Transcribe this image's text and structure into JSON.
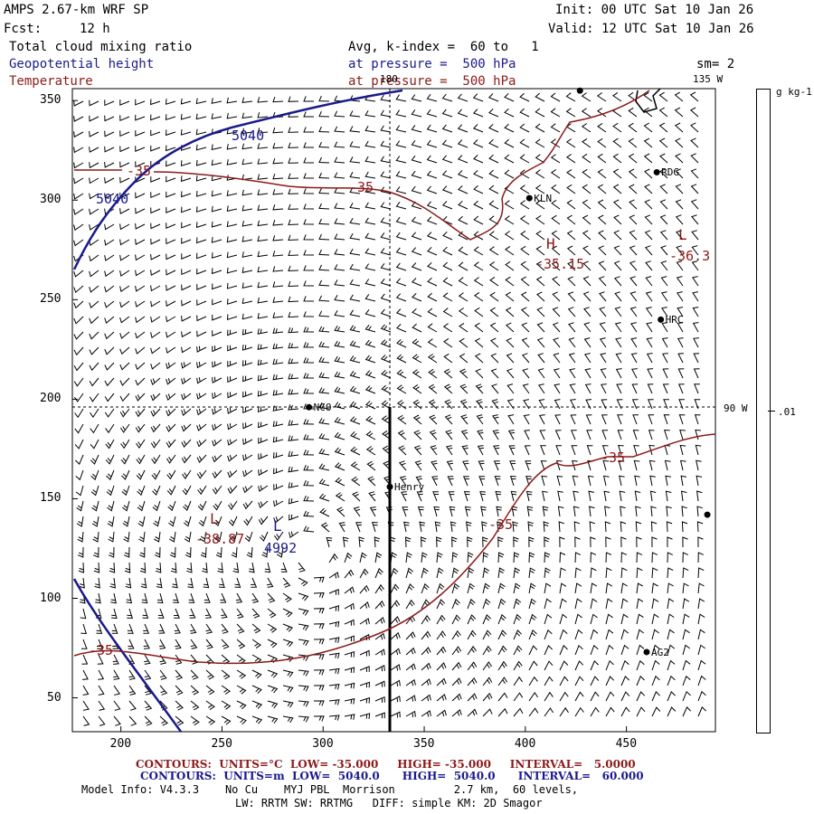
{
  "header": {
    "model": "AMPS 2.67-km WRF SP",
    "fcst_label": "Fcst:",
    "fcst_value": "12 h",
    "init": "Init: 00 UTC Sat 10 Jan 26",
    "valid": "Valid: 12 UTC Sat 10 Jan 26",
    "field1": "Total cloud mixing ratio",
    "field2": "Geopotential height",
    "field3": "Temperature",
    "avg_line": "Avg, k-index =  60 to   1",
    "pressure_line1": "at pressure =  500 hPa",
    "pressure_line2": "at pressure =  500 hPa",
    "smoothing": "sm= 2"
  },
  "axes": {
    "x_ticks": [
      "200",
      "250",
      "300",
      "350",
      "400",
      "450"
    ],
    "y_ticks": [
      "350",
      "300",
      "250",
      "200",
      "150",
      "100",
      "50"
    ],
    "lon_labels": {
      "top": "180",
      "top_right": "135 W",
      "right": "90 W"
    }
  },
  "colorbar": {
    "unit": "g kg-1",
    "value": ".01"
  },
  "stations": [
    {
      "name": "",
      "x": 427,
      "y": 355
    },
    {
      "name": "RDG",
      "x": 465,
      "y": 314
    },
    {
      "name": "KLN",
      "x": 402,
      "y": 301
    },
    {
      "name": "HRC",
      "x": 467,
      "y": 240
    },
    {
      "name": "NCO",
      "x": 293,
      "y": 196
    },
    {
      "name": "Henry",
      "x": 333,
      "y": 156
    },
    {
      "name": "",
      "x": 490,
      "y": 142
    },
    {
      "name": "AG2",
      "x": 460,
      "y": 73
    }
  ],
  "labels": {
    "height_5040_top": "5040",
    "height_5040_left": "5040",
    "height_low_L": "L",
    "height_low_value": "4992",
    "temp_low_L": "L",
    "temp_low_value": "-38.87",
    "temp_high_H": "H",
    "temp_high_value": "-35.15",
    "temp_low2_L": "L",
    "temp_low2_value": "-36.3",
    "temp_m35_a": "-35",
    "temp_m35_b": "-35",
    "temp_m35_c": "-35",
    "temp_m35_d": "-35",
    "temp_m35_e": "-35"
  },
  "footer": {
    "contours_temp": "CONTOURS:  UNITS=°C  LOW= -35.000     HIGH= -35.000     INTERVAL=   5.0000",
    "contours_height": "CONTOURS:  UNITS=m  LOW=  5040.0      HIGH=  5040.0      INTERVAL=   60.000",
    "model_info": "Model Info: V4.3.3    No Cu    MYJ PBL  Morrison         2.7 km,  60 levels,",
    "physics": "LW: RRTM SW: RRTMG   DIFF: simple KM: 2D Smagor"
  },
  "colors": {
    "height": "#1a1a8c",
    "temperature": "#8b1a1a",
    "text": "#000000"
  }
}
